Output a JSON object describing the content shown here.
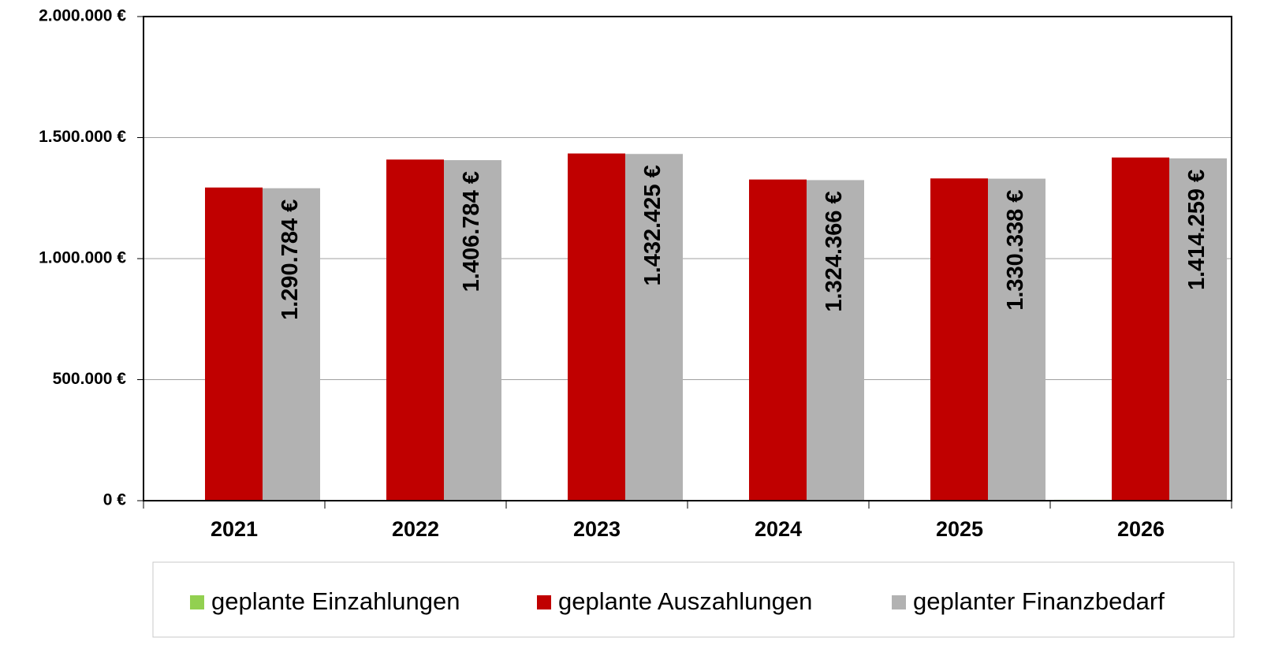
{
  "chart_data": {
    "type": "bar",
    "categories": [
      "2021",
      "2022",
      "2023",
      "2024",
      "2025",
      "2026"
    ],
    "series": [
      {
        "name": "geplante Einzahlungen",
        "color": "#92d050",
        "values": [
          3000,
          2500,
          2000,
          2500,
          1000,
          3500
        ]
      },
      {
        "name": "geplante Auszahlungen",
        "color": "#c00000",
        "values": [
          1293784,
          1409284,
          1434425,
          1326866,
          1331338,
          1417759
        ]
      },
      {
        "name": "geplanter Finanzbedarf",
        "color": "#b2b2b2",
        "values": [
          1290784,
          1406784,
          1432425,
          1324366,
          1330338,
          1414259
        ],
        "value_labels": [
          "1.290.784 €",
          "1.406.784 €",
          "1.432.425 €",
          "1.324.366 €",
          "1.330.338 €",
          "1.414.259 €"
        ]
      }
    ],
    "ylim": [
      0,
      2000000
    ],
    "yticks": [
      {
        "value": 0,
        "label": "0 €"
      },
      {
        "value": 500000,
        "label": "500.000 €"
      },
      {
        "value": 1000000,
        "label": "1.000.000 €"
      },
      {
        "value": 1500000,
        "label": "1.500.000 €"
      },
      {
        "value": 2000000,
        "label": "2.000.000 €"
      }
    ],
    "grid": true,
    "legend": "bottom"
  }
}
